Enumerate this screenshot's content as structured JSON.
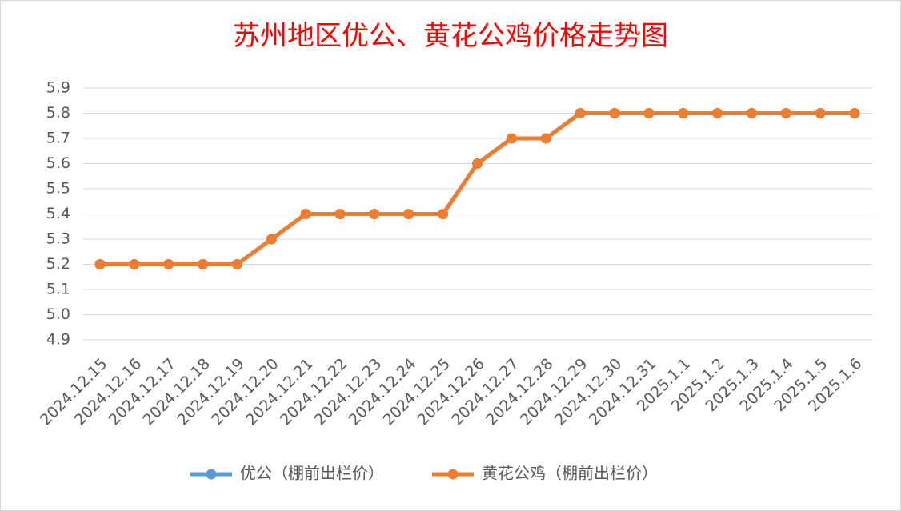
{
  "chart_data": {
    "type": "line",
    "title": "苏州地区优公、黄花公鸡价格走势图",
    "categories": [
      "2024.12.15",
      "2024.12.16",
      "2024.12.17",
      "2024.12.18",
      "2024.12.19",
      "2024.12.20",
      "2024.12.21",
      "2024.12.22",
      "2024.12.23",
      "2024.12.24",
      "2024.12.25",
      "2024.12.26",
      "2024.12.27",
      "2024.12.28",
      "2024.12.29",
      "2024.12.30",
      "2024.12.31",
      "2025.1.1",
      "2025.1.2",
      "2025.1.3",
      "2025.1.4",
      "2025.1.5",
      "2025.1.6"
    ],
    "series": [
      {
        "name": "优公（棚前出栏价）",
        "color": "#5b9bd5",
        "values": [
          5.2,
          5.2,
          5.2,
          5.2,
          5.2,
          5.3,
          5.4,
          5.4,
          5.4,
          5.4,
          5.4,
          5.6,
          5.7,
          5.7,
          5.8,
          5.8,
          5.8,
          5.8,
          5.8,
          5.8,
          5.8,
          5.8,
          5.8
        ]
      },
      {
        "name": "黄花公鸡（棚前出栏价）",
        "color": "#ed7d31",
        "values": [
          5.2,
          5.2,
          5.2,
          5.2,
          5.2,
          5.3,
          5.4,
          5.4,
          5.4,
          5.4,
          5.4,
          5.6,
          5.7,
          5.7,
          5.8,
          5.8,
          5.8,
          5.8,
          5.8,
          5.8,
          5.8,
          5.8,
          5.8
        ]
      }
    ],
    "ylim": [
      4.9,
      5.9
    ],
    "yticks": [
      4.9,
      {
        "value": 5,
        "label": "5.0"
      },
      5.1,
      5.2,
      5.3,
      5.4,
      5.5,
      5.6,
      5.7,
      5.8,
      5.9
    ],
    "grid": true,
    "legend": "bottom"
  }
}
